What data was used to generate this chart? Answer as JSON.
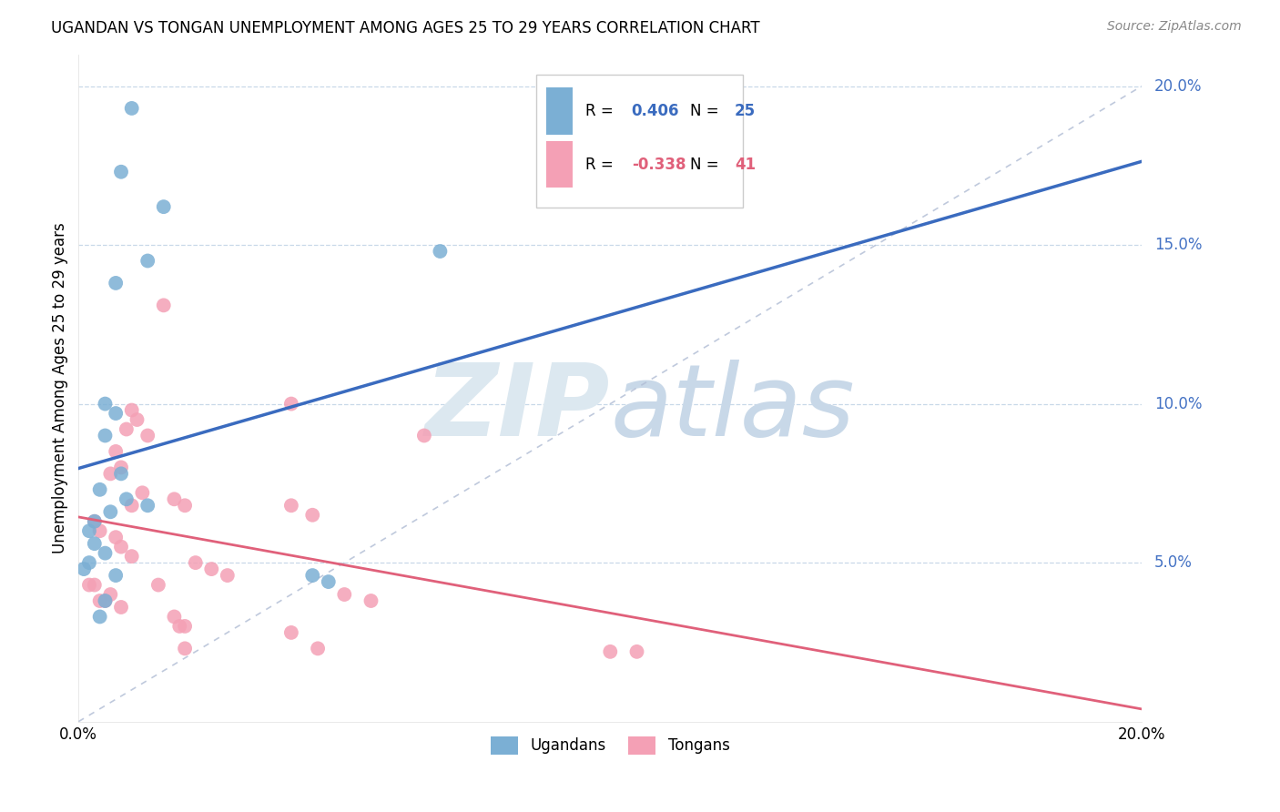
{
  "title": "UGANDAN VS TONGAN UNEMPLOYMENT AMONG AGES 25 TO 29 YEARS CORRELATION CHART",
  "source": "Source: ZipAtlas.com",
  "ylabel": "Unemployment Among Ages 25 to 29 years",
  "xlim": [
    0,
    0.2
  ],
  "ylim": [
    0,
    0.21
  ],
  "ugandan_color": "#7bafd4",
  "tongan_color": "#f4a0b5",
  "ugandan_line_color": "#3a6bbf",
  "tongan_line_color": "#e0607a",
  "diagonal_line_color": "#b0bcd4",
  "ugandan_R": 0.406,
  "ugandan_N": 25,
  "tongan_R": -0.338,
  "tongan_N": 41,
  "legend_R_color_ugandan": "#3a6bbf",
  "legend_R_color_tongan": "#e0607a",
  "legend_ugandan_label": "Ugandans",
  "legend_tongan_label": "Tongans",
  "watermark_zip": "ZIP",
  "watermark_atlas": "atlas",
  "watermark_color": "#dce8f0",
  "background_color": "#ffffff",
  "grid_color": "#c8d8e8",
  "ugandan_points": [
    [
      0.01,
      0.193
    ],
    [
      0.008,
      0.173
    ],
    [
      0.016,
      0.162
    ],
    [
      0.013,
      0.145
    ],
    [
      0.007,
      0.138
    ],
    [
      0.068,
      0.148
    ],
    [
      0.005,
      0.1
    ],
    [
      0.007,
      0.097
    ],
    [
      0.005,
      0.09
    ],
    [
      0.008,
      0.078
    ],
    [
      0.004,
      0.073
    ],
    [
      0.009,
      0.07
    ],
    [
      0.013,
      0.068
    ],
    [
      0.006,
      0.066
    ],
    [
      0.003,
      0.063
    ],
    [
      0.002,
      0.06
    ],
    [
      0.003,
      0.056
    ],
    [
      0.005,
      0.053
    ],
    [
      0.002,
      0.05
    ],
    [
      0.001,
      0.048
    ],
    [
      0.007,
      0.046
    ],
    [
      0.044,
      0.046
    ],
    [
      0.047,
      0.044
    ],
    [
      0.005,
      0.038
    ],
    [
      0.004,
      0.033
    ]
  ],
  "tongan_points": [
    [
      0.016,
      0.131
    ],
    [
      0.04,
      0.1
    ],
    [
      0.01,
      0.098
    ],
    [
      0.011,
      0.095
    ],
    [
      0.009,
      0.092
    ],
    [
      0.013,
      0.09
    ],
    [
      0.065,
      0.09
    ],
    [
      0.007,
      0.085
    ],
    [
      0.008,
      0.08
    ],
    [
      0.006,
      0.078
    ],
    [
      0.012,
      0.072
    ],
    [
      0.01,
      0.068
    ],
    [
      0.018,
      0.07
    ],
    [
      0.02,
      0.068
    ],
    [
      0.04,
      0.068
    ],
    [
      0.044,
      0.065
    ],
    [
      0.003,
      0.063
    ],
    [
      0.004,
      0.06
    ],
    [
      0.007,
      0.058
    ],
    [
      0.008,
      0.055
    ],
    [
      0.01,
      0.052
    ],
    [
      0.022,
      0.05
    ],
    [
      0.025,
      0.048
    ],
    [
      0.028,
      0.046
    ],
    [
      0.015,
      0.043
    ],
    [
      0.05,
      0.04
    ],
    [
      0.002,
      0.043
    ],
    [
      0.003,
      0.043
    ],
    [
      0.006,
      0.04
    ],
    [
      0.004,
      0.038
    ],
    [
      0.005,
      0.038
    ],
    [
      0.008,
      0.036
    ],
    [
      0.018,
      0.033
    ],
    [
      0.019,
      0.03
    ],
    [
      0.02,
      0.03
    ],
    [
      0.04,
      0.028
    ],
    [
      0.02,
      0.023
    ],
    [
      0.045,
      0.023
    ],
    [
      0.1,
      0.022
    ],
    [
      0.105,
      0.022
    ],
    [
      0.055,
      0.038
    ]
  ],
  "right_ytick_labels": [
    "5.0%",
    "10.0%",
    "15.0%",
    "20.0%"
  ],
  "right_ytick_vals": [
    0.05,
    0.1,
    0.15,
    0.2
  ],
  "right_tick_color": "#4472c4"
}
